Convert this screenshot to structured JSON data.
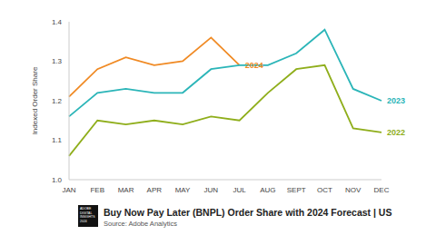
{
  "chart_data": {
    "type": "line",
    "title": "Buy Now Pay Later (BNPL) Order Share with 2024 Forecast | US",
    "subtitle": "Source: Adobe Analytics",
    "logo": [
      "ADOBE",
      "DIGITAL",
      "INSIGHTS",
      "2024"
    ],
    "y_label": "Indexed Order Share",
    "categories": [
      "JAN",
      "FEB",
      "MAR",
      "APR",
      "MAY",
      "JUN",
      "JUL",
      "AUG",
      "SEPT",
      "OCT",
      "NOV",
      "DEC"
    ],
    "series": [
      {
        "name": "2024",
        "color": "#f08a24",
        "values": [
          1.21,
          1.28,
          1.31,
          1.29,
          1.3,
          1.36,
          1.29,
          null,
          null,
          null,
          null,
          null
        ]
      },
      {
        "name": "2023",
        "color": "#2bb5b8",
        "values": [
          1.16,
          1.22,
          1.23,
          1.22,
          1.22,
          1.28,
          1.29,
          1.29,
          1.32,
          1.38,
          1.23,
          1.2
        ]
      },
      {
        "name": "2022",
        "color": "#8fae1b",
        "values": [
          1.06,
          1.15,
          1.14,
          1.15,
          1.14,
          1.16,
          1.15,
          1.22,
          1.28,
          1.29,
          1.13,
          1.12
        ]
      }
    ],
    "ylim": [
      1,
      1.4
    ],
    "yticks": [
      {
        "value": 1,
        "label": "1.0"
      },
      1.1,
      1.2,
      1.3,
      1.4
    ],
    "grid": false
  }
}
